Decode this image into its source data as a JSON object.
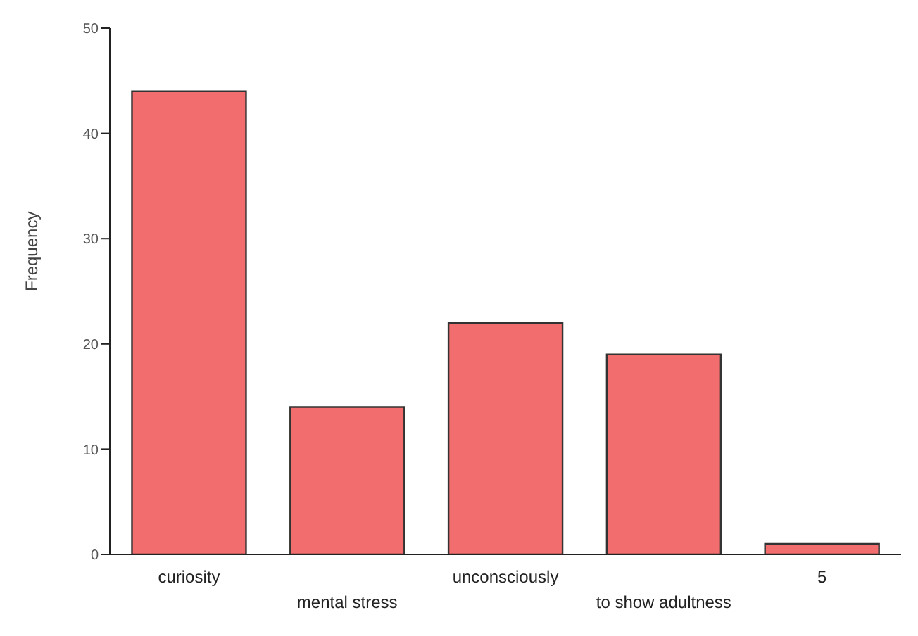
{
  "chart_data": {
    "type": "bar",
    "ylabel": "Frequency",
    "categories": [
      "curiosity",
      "mental stress",
      "unconsciously",
      "to show adultness",
      "5"
    ],
    "values": [
      44,
      14,
      22,
      19,
      1
    ],
    "color": "#f26d6d",
    "ylim": [
      0,
      50
    ],
    "yticks": [
      0,
      10,
      20,
      30,
      40,
      50
    ],
    "grid": false
  }
}
